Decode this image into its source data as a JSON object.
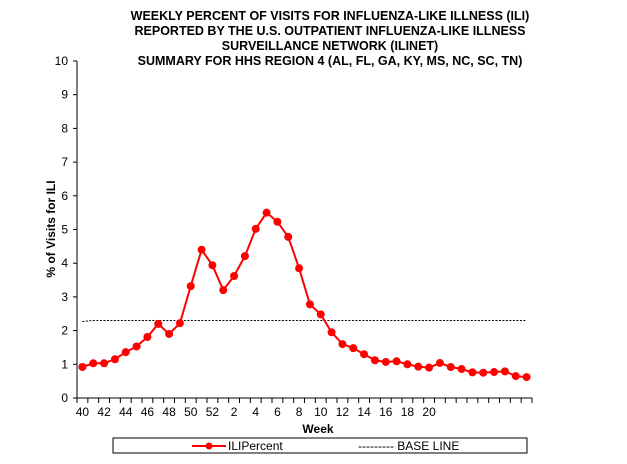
{
  "chart_data": {
    "type": "line",
    "title": [
      "WEEKLY PERCENT  OF VISITS FOR INFLUENZA-LIKE  ILLNESS (ILI)",
      "REPORTED  BY THE U.S. OUTPATIENT  INFLUENZA-LIKE  ILLNESS",
      "SURVEILLANCE  NETWORK (ILINET)",
      "SUMMARY FOR HHS REGION 4 (AL, FL, GA, KY, MS, NC, SC, TN)"
    ],
    "xlabel": "Week",
    "ylabel": "% of Visits for ILI",
    "ylim": [
      0,
      10
    ],
    "yticks": [
      0,
      1,
      2,
      3,
      4,
      5,
      6,
      7,
      8,
      9,
      10
    ],
    "x": [
      40,
      41,
      42,
      43,
      44,
      45,
      46,
      47,
      48,
      49,
      50,
      51,
      52,
      1,
      2,
      3,
      4,
      5,
      6,
      7,
      8,
      9,
      10,
      11,
      12,
      13,
      14,
      15,
      16,
      17,
      18,
      19,
      20,
      21,
      22,
      23,
      24,
      25,
      26,
      27,
      28,
      29
    ],
    "xtick_labels": [
      "40",
      "",
      "42",
      "",
      "44",
      "",
      "46",
      "",
      "48",
      "",
      "50",
      "",
      "52",
      "",
      "2",
      "",
      "4",
      "",
      "6",
      "",
      "8",
      "",
      "10",
      "",
      "12",
      "",
      "14",
      "",
      "16",
      "",
      "18",
      "",
      "20",
      "",
      "",
      "",
      "",
      "",
      "",
      "",
      "",
      ""
    ],
    "series": [
      {
        "name": "ILIPercent",
        "color": "#ff0000",
        "values": [
          0.92,
          1.03,
          1.03,
          1.15,
          1.36,
          1.53,
          1.81,
          2.2,
          1.9,
          2.22,
          3.32,
          4.4,
          3.94,
          3.2,
          3.62,
          4.21,
          5.02,
          5.5,
          5.23,
          4.78,
          3.85,
          2.78,
          2.48,
          1.95,
          1.6,
          1.48,
          1.3,
          1.12,
          1.07,
          1.09,
          1.0,
          0.93,
          0.9,
          1.04,
          0.92,
          0.86,
          0.76,
          0.75,
          0.77,
          0.79,
          0.65,
          0.62
        ]
      },
      {
        "name": "BASE LINE",
        "color": "#000000",
        "values": [
          2.27,
          2.3,
          2.3,
          2.3,
          2.3,
          2.3,
          2.3,
          2.3,
          2.3,
          2.3,
          2.3,
          2.3,
          2.3,
          2.3,
          2.3,
          2.3,
          2.3,
          2.3,
          2.3,
          2.3,
          2.3,
          2.3,
          2.3,
          2.3,
          2.3,
          2.3,
          2.3,
          2.3,
          2.3,
          2.3,
          2.3,
          2.3,
          2.3,
          2.3,
          2.3,
          2.3,
          2.3,
          2.3,
          2.3,
          2.3,
          2.3,
          2.3
        ]
      }
    ],
    "legend": {
      "placement": "bottom",
      "labels": [
        "ILIPercent",
        "--------- BASE LINE"
      ]
    }
  }
}
